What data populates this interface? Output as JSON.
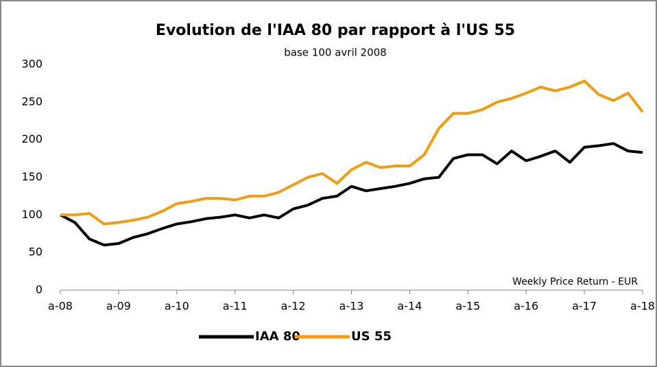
{
  "chart_data": {
    "type": "line",
    "title": "Evolution de l'IAA 80 par rapport à l'US 55",
    "subtitle": "base 100 avril 2008",
    "annotation": "Weekly Price Return - EUR",
    "xlim": [
      2008,
      2018
    ],
    "xticks": [
      {
        "value": 2008,
        "label": "a-08"
      },
      {
        "value": 2009,
        "label": "a-09"
      },
      {
        "value": 2010,
        "label": "a-10"
      },
      {
        "value": 2011,
        "label": "a-11"
      },
      {
        "value": 2012,
        "label": "a-12"
      },
      {
        "value": 2013,
        "label": "a-13"
      },
      {
        "value": 2014,
        "label": "a-14"
      },
      {
        "value": 2015,
        "label": "a-15"
      },
      {
        "value": 2016,
        "label": "a-16"
      },
      {
        "value": 2017,
        "label": "a-17"
      },
      {
        "value": 2018,
        "label": "a-18"
      }
    ],
    "ylim": [
      0,
      300
    ],
    "yticks": [
      0,
      50,
      100,
      150,
      200,
      250,
      300
    ],
    "grid": false,
    "legend": "bottom",
    "x": [
      2008.0,
      2008.25,
      2008.5,
      2008.75,
      2009.0,
      2009.25,
      2009.5,
      2009.75,
      2010.0,
      2010.25,
      2010.5,
      2010.75,
      2011.0,
      2011.25,
      2011.5,
      2011.75,
      2012.0,
      2012.25,
      2012.5,
      2012.75,
      2013.0,
      2013.25,
      2013.5,
      2013.75,
      2014.0,
      2014.25,
      2014.5,
      2014.75,
      2015.0,
      2015.25,
      2015.5,
      2015.75,
      2016.0,
      2016.25,
      2016.5,
      2016.75,
      2017.0,
      2017.25,
      2017.5,
      2017.75,
      2018.0
    ],
    "series": [
      {
        "name": "IAA 80",
        "color": "#000000",
        "values": [
          100,
          90,
          68,
          60,
          62,
          70,
          75,
          82,
          88,
          91,
          95,
          97,
          100,
          96,
          100,
          96,
          108,
          113,
          122,
          125,
          138,
          132,
          135,
          138,
          142,
          148,
          150,
          175,
          180,
          180,
          168,
          185,
          172,
          178,
          185,
          170,
          190,
          192,
          195,
          185,
          183
        ]
      },
      {
        "name": "US 55",
        "color": "#f39c12",
        "values": [
          100,
          100,
          102,
          88,
          90,
          93,
          97,
          105,
          115,
          118,
          122,
          122,
          120,
          125,
          125,
          130,
          140,
          150,
          155,
          142,
          160,
          170,
          163,
          165,
          165,
          180,
          215,
          235,
          235,
          240,
          250,
          255,
          262,
          270,
          265,
          270,
          278,
          260,
          252,
          262,
          237
        ]
      }
    ]
  }
}
